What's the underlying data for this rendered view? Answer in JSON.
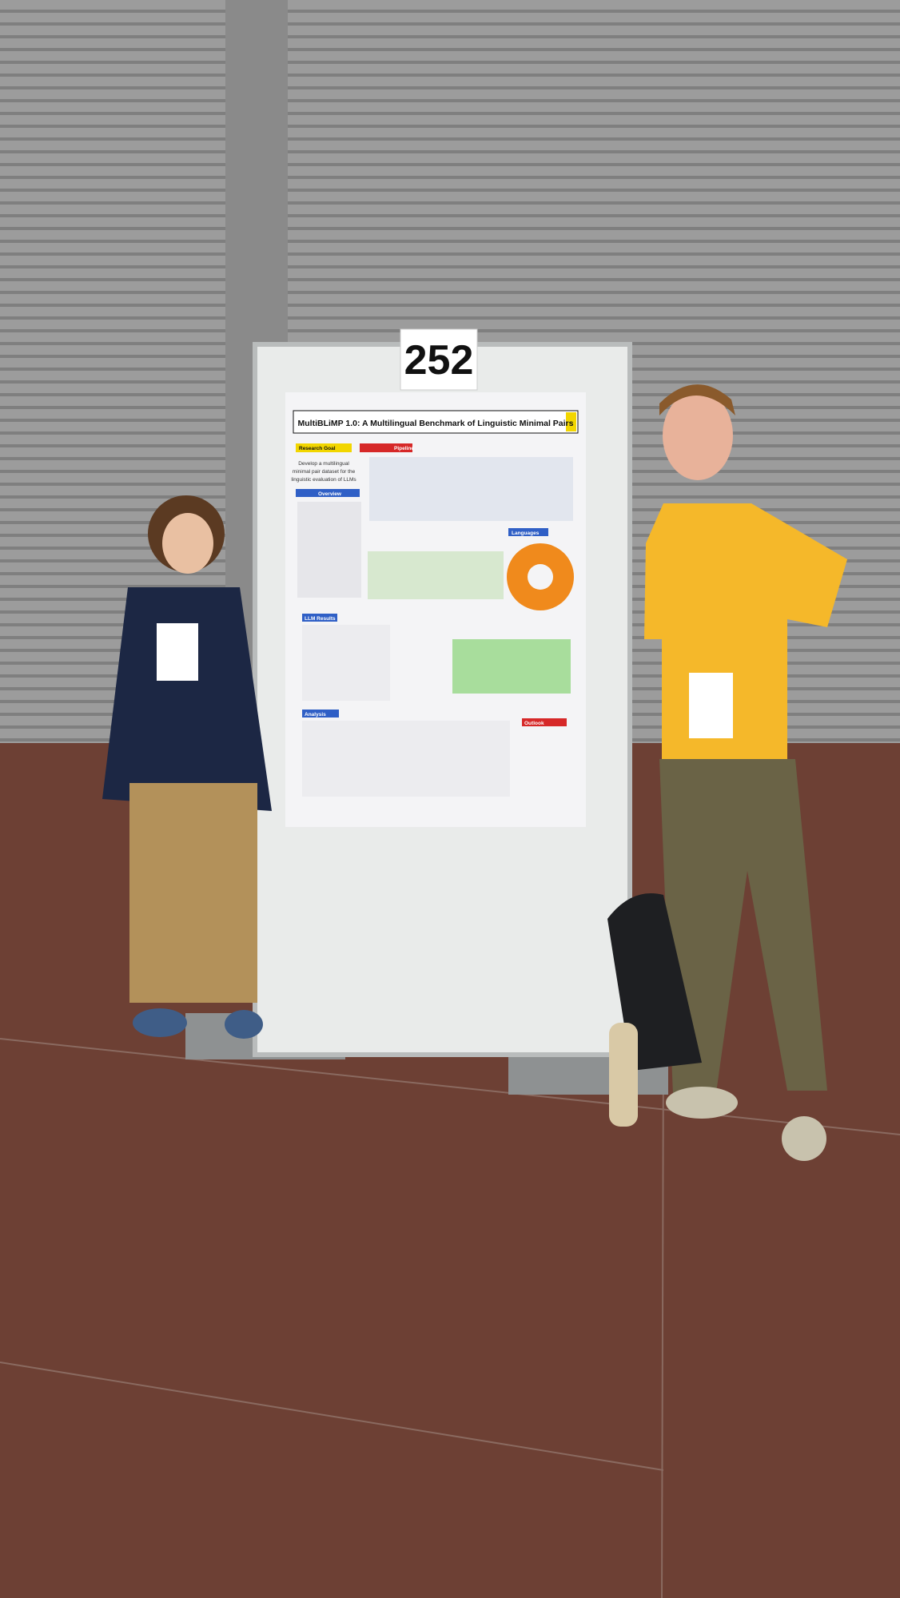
{
  "board_number": "252",
  "poster": {
    "title": "MultiBLiMP 1.0: A Multilingual Benchmark of Linguistic Minimal Pairs",
    "sections": {
      "research_goal": "Research Goal",
      "pipeline": "Pipeline",
      "overview": "Overview",
      "languages": "Languages",
      "llm_results": "LLM Results",
      "analysis": "Analysis",
      "outlook": "Outlook"
    },
    "goal_text": [
      "Develop a multilingual",
      "minimal pair dataset for the",
      "linguistic evaluation of LLMs"
    ]
  }
}
